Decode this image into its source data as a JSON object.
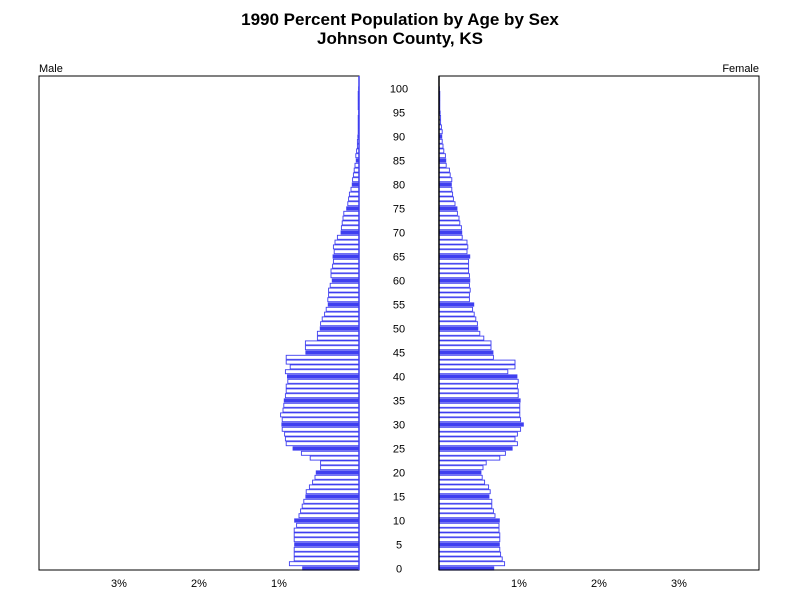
{
  "chart_data": {
    "type": "bar",
    "subtype": "population-pyramid",
    "title": "1990 Percent Population by Age by Sex",
    "subtitle": "Johnson County, KS",
    "left_label": "Male",
    "right_label": "Female",
    "x_ticks": [
      "1%",
      "2%",
      "3%"
    ],
    "xlim": [
      0,
      4
    ],
    "age_ticks": [
      "0",
      "5",
      "10",
      "15",
      "20",
      "25",
      "30",
      "35",
      "40",
      "45",
      "50",
      "55",
      "60",
      "65",
      "70",
      "75",
      "80",
      "85",
      "90",
      "95",
      "100"
    ],
    "highlight_every": 5,
    "colors": {
      "highlight": "#3f3ff0",
      "outline": "#3f3ff0",
      "fill": "#ffffff",
      "axis": "#000000"
    },
    "ages": [
      0,
      1,
      2,
      3,
      4,
      5,
      6,
      7,
      8,
      9,
      10,
      11,
      12,
      13,
      14,
      15,
      16,
      17,
      18,
      19,
      20,
      21,
      22,
      23,
      24,
      25,
      26,
      27,
      28,
      29,
      30,
      31,
      32,
      33,
      34,
      35,
      36,
      37,
      38,
      39,
      40,
      41,
      42,
      43,
      44,
      45,
      46,
      47,
      48,
      49,
      50,
      51,
      52,
      53,
      54,
      55,
      56,
      57,
      58,
      59,
      60,
      61,
      62,
      63,
      64,
      65,
      66,
      67,
      68,
      69,
      70,
      71,
      72,
      73,
      74,
      75,
      76,
      77,
      78,
      79,
      80,
      81,
      82,
      83,
      84,
      85,
      86,
      87,
      88,
      89,
      90,
      91,
      92,
      93,
      94,
      95,
      96,
      97,
      98,
      99,
      100
    ],
    "series": [
      {
        "name": "Male",
        "values": [
          0.71,
          0.87,
          0.81,
          0.81,
          0.81,
          0.81,
          0.81,
          0.81,
          0.81,
          0.78,
          0.81,
          0.75,
          0.73,
          0.71,
          0.69,
          0.67,
          0.66,
          0.62,
          0.58,
          0.55,
          0.54,
          0.48,
          0.48,
          0.61,
          0.72,
          0.83,
          0.91,
          0.92,
          0.93,
          0.96,
          0.97,
          0.96,
          0.98,
          0.95,
          0.94,
          0.94,
          0.92,
          0.91,
          0.91,
          0.89,
          0.9,
          0.92,
          0.86,
          0.91,
          0.91,
          0.67,
          0.67,
          0.67,
          0.52,
          0.52,
          0.49,
          0.48,
          0.46,
          0.43,
          0.41,
          0.39,
          0.39,
          0.38,
          0.38,
          0.36,
          0.34,
          0.35,
          0.35,
          0.33,
          0.32,
          0.33,
          0.31,
          0.32,
          0.3,
          0.27,
          0.23,
          0.22,
          0.21,
          0.2,
          0.19,
          0.16,
          0.14,
          0.13,
          0.12,
          0.1,
          0.09,
          0.08,
          0.07,
          0.06,
          0.05,
          0.04,
          0.04,
          0.03,
          0.02,
          0.02,
          0.02,
          0.01,
          0.01,
          0.01,
          0.01,
          0.01,
          0.01,
          0.01,
          0.01,
          0.01,
          0.01
        ]
      },
      {
        "name": "Female",
        "values": [
          0.69,
          0.82,
          0.79,
          0.77,
          0.76,
          0.76,
          0.76,
          0.76,
          0.75,
          0.75,
          0.76,
          0.7,
          0.68,
          0.66,
          0.66,
          0.63,
          0.64,
          0.62,
          0.57,
          0.54,
          0.53,
          0.55,
          0.59,
          0.76,
          0.83,
          0.92,
          0.98,
          0.95,
          0.98,
          1.02,
          1.06,
          1.02,
          1.01,
          1.01,
          1.01,
          1.02,
          0.99,
          0.99,
          0.98,
          0.99,
          0.98,
          0.86,
          0.95,
          0.95,
          0.68,
          0.68,
          0.65,
          0.65,
          0.56,
          0.51,
          0.49,
          0.48,
          0.46,
          0.44,
          0.42,
          0.44,
          0.38,
          0.38,
          0.39,
          0.38,
          0.39,
          0.38,
          0.37,
          0.37,
          0.37,
          0.39,
          0.35,
          0.36,
          0.35,
          0.29,
          0.29,
          0.28,
          0.26,
          0.25,
          0.23,
          0.23,
          0.2,
          0.18,
          0.17,
          0.16,
          0.16,
          0.16,
          0.14,
          0.13,
          0.09,
          0.09,
          0.08,
          0.06,
          0.05,
          0.04,
          0.04,
          0.04,
          0.03,
          0.02,
          0.02,
          0.02,
          0.01,
          0.01,
          0.01,
          0.01,
          0.01
        ]
      }
    ]
  }
}
